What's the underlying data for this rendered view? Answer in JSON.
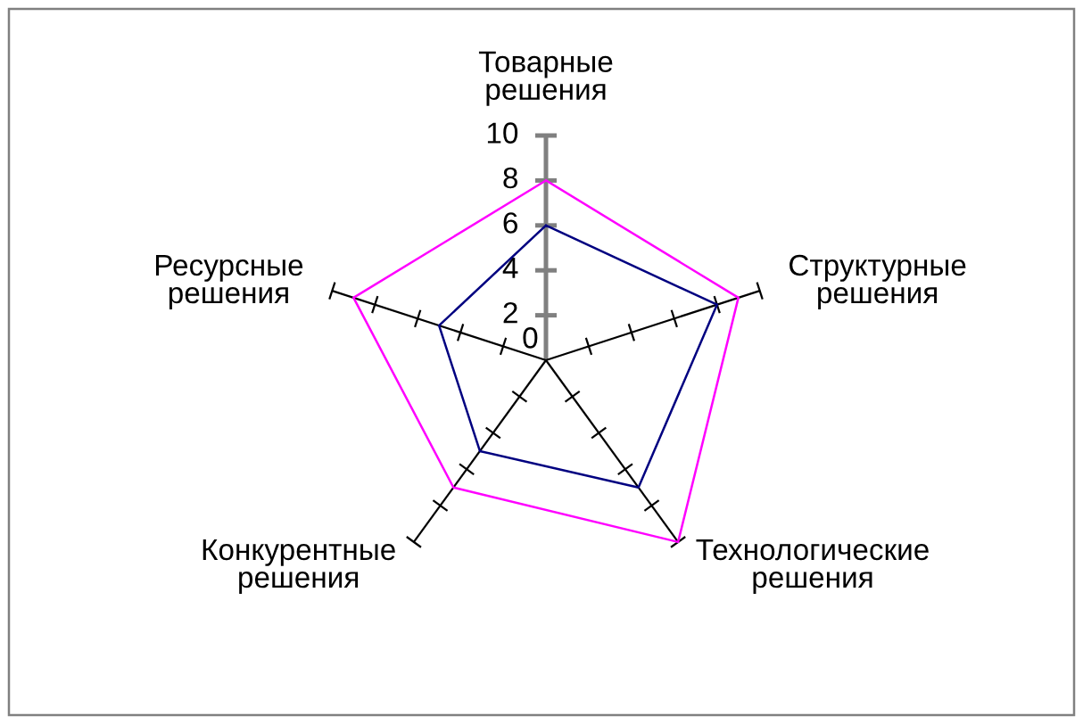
{
  "chart_data": {
    "type": "radar",
    "categories": [
      "Товарные\nрешения",
      "Структурные\nрешения",
      "Технологические\nрешения",
      "Конкурентные\nрешения",
      "Ресурсные\nрешения"
    ],
    "ylim": [
      0,
      10
    ],
    "yticks": [
      0,
      2,
      4,
      6,
      8,
      10
    ],
    "series": [
      {
        "color": "#ff00ff",
        "values": [
          8,
          9,
          10,
          7,
          9
        ]
      },
      {
        "color": "#000080",
        "values": [
          6,
          8,
          7,
          5,
          5
        ]
      }
    ]
  }
}
